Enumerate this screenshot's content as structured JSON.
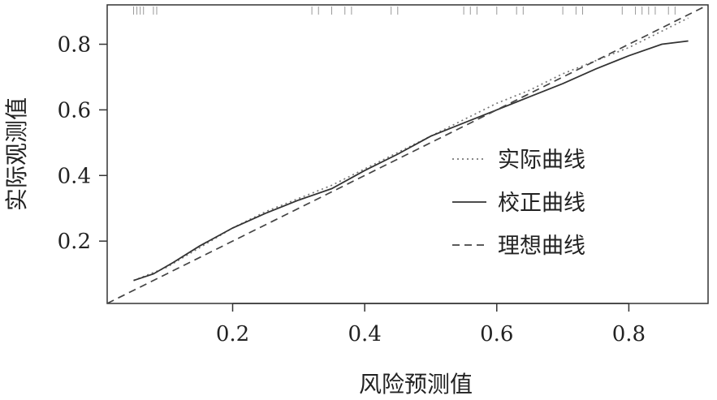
{
  "chart_data": {
    "type": "line",
    "title": "",
    "xlabel": "风险预测值",
    "ylabel": "实际观测值",
    "xlim": [
      0.01,
      0.92
    ],
    "ylim": [
      0.01,
      0.92
    ],
    "x_ticks": [
      0.2,
      0.4,
      0.6,
      0.8
    ],
    "y_ticks": [
      0.2,
      0.4,
      0.6,
      0.8
    ],
    "x_tick_labels": [
      "0.2",
      "0.4",
      "0.6",
      "0.8"
    ],
    "y_tick_labels": [
      "0.2",
      "0.4",
      "0.6",
      "0.8"
    ],
    "grid": false,
    "legend_position": "center-right",
    "series": [
      {
        "name": "实际曲线",
        "style": "dotted",
        "color": "#777777",
        "x": [
          0.05,
          0.1,
          0.15,
          0.2,
          0.25,
          0.3,
          0.35,
          0.4,
          0.45,
          0.5,
          0.55,
          0.6,
          0.65,
          0.7,
          0.75,
          0.8,
          0.85,
          0.89
        ],
        "y": [
          0.08,
          0.12,
          0.18,
          0.24,
          0.29,
          0.33,
          0.37,
          0.42,
          0.47,
          0.52,
          0.57,
          0.62,
          0.66,
          0.71,
          0.75,
          0.79,
          0.84,
          0.88
        ]
      },
      {
        "name": "校正曲线",
        "style": "solid",
        "color": "#333333",
        "x": [
          0.05,
          0.08,
          0.11,
          0.15,
          0.2,
          0.25,
          0.3,
          0.35,
          0.4,
          0.45,
          0.5,
          0.55,
          0.6,
          0.65,
          0.7,
          0.75,
          0.8,
          0.85,
          0.89
        ],
        "y": [
          0.08,
          0.1,
          0.135,
          0.185,
          0.24,
          0.285,
          0.325,
          0.36,
          0.415,
          0.465,
          0.52,
          0.56,
          0.6,
          0.64,
          0.68,
          0.725,
          0.765,
          0.8,
          0.81
        ]
      },
      {
        "name": "理想曲线",
        "style": "dashed",
        "color": "#444444",
        "x": [
          0.01,
          0.92
        ],
        "y": [
          0.01,
          0.92
        ]
      }
    ],
    "rug_x": [
      0.05,
      0.055,
      0.06,
      0.065,
      0.08,
      0.085,
      0.32,
      0.33,
      0.35,
      0.37,
      0.38,
      0.44,
      0.45,
      0.55,
      0.56,
      0.57,
      0.6,
      0.63,
      0.64,
      0.7,
      0.72,
      0.73,
      0.79,
      0.81,
      0.82,
      0.83,
      0.84,
      0.86,
      0.87
    ]
  }
}
